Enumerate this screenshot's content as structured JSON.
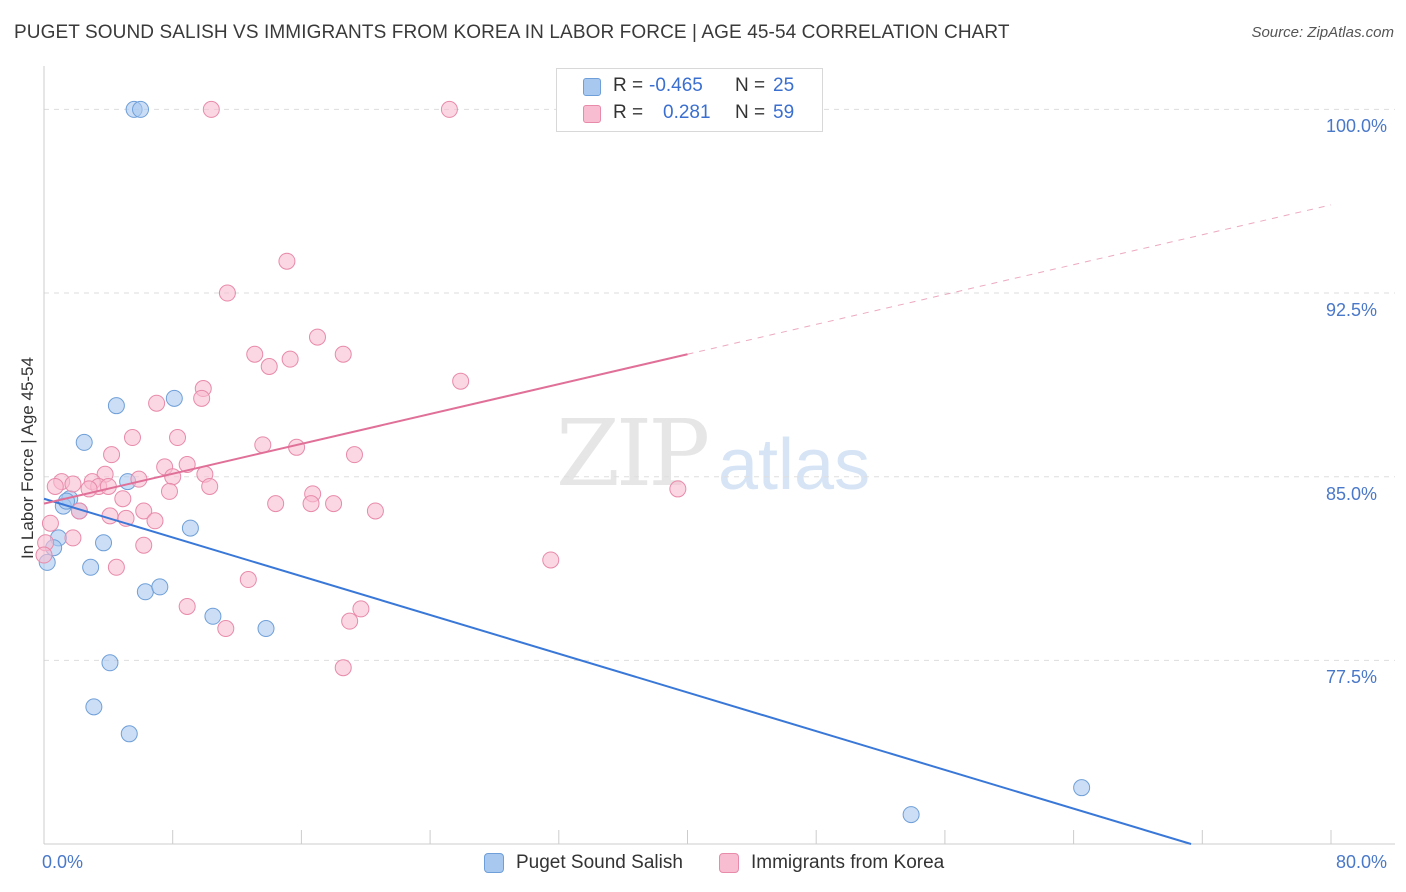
{
  "header": {
    "title": "PUGET SOUND SALISH VS IMMIGRANTS FROM KOREA IN LABOR FORCE | AGE 45-54 CORRELATION CHART",
    "source": "Source: ZipAtlas.com"
  },
  "watermark": {
    "zip": "ZIP",
    "atlas": "atlas"
  },
  "legend": {
    "rows": [
      {
        "r_label": "R =",
        "r_value": "-0.465",
        "n_label": "N =",
        "n_value": "25",
        "color": "#a8c8f0",
        "border": "#6f9fd8"
      },
      {
        "r_label": "R =",
        "r_value": "0.281",
        "n_label": "N =",
        "n_value": "59",
        "color": "#f8bdd0",
        "border": "#e88aaa"
      }
    ]
  },
  "bottom_legend": {
    "items": [
      {
        "label": "Puget Sound Salish",
        "color": "#a8c8f0",
        "border": "#6f9fd8"
      },
      {
        "label": "Immigrants from Korea",
        "color": "#f8bdd0",
        "border": "#e88aaa"
      }
    ]
  },
  "chart_data": {
    "type": "scatter",
    "title": "PUGET SOUND SALISH VS IMMIGRANTS FROM KOREA IN LABOR FORCE | AGE 45-54 CORRELATION CHART",
    "xlabel": "",
    "ylabel": "In Labor Force | Age 45-54",
    "xlim": [
      0,
      80
    ],
    "ylim": [
      70.0,
      101.2
    ],
    "x_tick_labels": [
      "0.0%",
      "80.0%"
    ],
    "y_ticks": [
      100.0,
      92.5,
      85.0,
      77.5
    ],
    "y_tick_labels": [
      "100.0%",
      "92.5%",
      "85.0%",
      "77.5%"
    ],
    "grid": true,
    "series": [
      {
        "name": "Puget Sound Salish",
        "color": "#a8c8f0",
        "stroke": "#6f9fd8",
        "line_color": "#3a78d8",
        "trend": {
          "x": [
            0,
            71.3
          ],
          "y": [
            84.1,
            70.0
          ]
        },
        "points": [
          [
            5.6,
            100.0
          ],
          [
            6.0,
            100.0
          ],
          [
            2.5,
            86.4
          ],
          [
            4.5,
            87.9
          ],
          [
            8.1,
            88.2
          ],
          [
            5.2,
            84.8
          ],
          [
            1.6,
            84.1
          ],
          [
            1.2,
            83.8
          ],
          [
            2.2,
            83.6
          ],
          [
            0.9,
            82.5
          ],
          [
            3.7,
            82.3
          ],
          [
            0.6,
            82.1
          ],
          [
            9.1,
            82.9
          ],
          [
            0.2,
            81.5
          ],
          [
            2.9,
            81.3
          ],
          [
            6.3,
            80.3
          ],
          [
            7.2,
            80.5
          ],
          [
            10.5,
            79.3
          ],
          [
            13.8,
            78.8
          ],
          [
            4.1,
            77.4
          ],
          [
            3.1,
            75.6
          ],
          [
            5.3,
            74.5
          ],
          [
            53.9,
            71.2
          ],
          [
            64.5,
            72.3
          ],
          [
            1.4,
            84.0
          ]
        ]
      },
      {
        "name": "Immigrants from Korea",
        "color": "#f8bdd0",
        "stroke": "#e88aaa",
        "line_color": "#e07098",
        "trend": {
          "x": [
            0,
            40.0
          ],
          "y": [
            83.9,
            90.0
          ]
        },
        "trend_extension": {
          "x": [
            40.0,
            80.0
          ],
          "y": [
            90.0,
            96.1
          ]
        },
        "points": [
          [
            10.4,
            100.0
          ],
          [
            25.2,
            100.0
          ],
          [
            15.1,
            93.8
          ],
          [
            11.4,
            92.5
          ],
          [
            17.0,
            90.7
          ],
          [
            13.1,
            90.0
          ],
          [
            15.3,
            89.8
          ],
          [
            18.6,
            90.0
          ],
          [
            14.0,
            89.5
          ],
          [
            25.9,
            88.9
          ],
          [
            9.9,
            88.6
          ],
          [
            9.8,
            88.2
          ],
          [
            7.0,
            88.0
          ],
          [
            5.5,
            86.6
          ],
          [
            8.3,
            86.6
          ],
          [
            13.6,
            86.3
          ],
          [
            15.7,
            86.2
          ],
          [
            4.2,
            85.9
          ],
          [
            19.3,
            85.9
          ],
          [
            7.5,
            85.4
          ],
          [
            8.9,
            85.5
          ],
          [
            3.8,
            85.1
          ],
          [
            10.0,
            85.1
          ],
          [
            8.0,
            85.0
          ],
          [
            5.9,
            84.9
          ],
          [
            3.0,
            84.8
          ],
          [
            1.1,
            84.8
          ],
          [
            0.7,
            84.6
          ],
          [
            3.4,
            84.6
          ],
          [
            4.0,
            84.6
          ],
          [
            2.8,
            84.5
          ],
          [
            1.8,
            84.7
          ],
          [
            10.3,
            84.6
          ],
          [
            7.8,
            84.4
          ],
          [
            16.7,
            84.3
          ],
          [
            4.9,
            84.1
          ],
          [
            14.4,
            83.9
          ],
          [
            16.6,
            83.9
          ],
          [
            18.0,
            83.9
          ],
          [
            2.2,
            83.6
          ],
          [
            6.2,
            83.6
          ],
          [
            20.6,
            83.6
          ],
          [
            4.1,
            83.4
          ],
          [
            5.1,
            83.3
          ],
          [
            6.9,
            83.2
          ],
          [
            0.4,
            83.1
          ],
          [
            1.8,
            82.5
          ],
          [
            0.1,
            82.3
          ],
          [
            6.2,
            82.2
          ],
          [
            31.5,
            81.6
          ],
          [
            0.0,
            81.8
          ],
          [
            4.5,
            81.3
          ],
          [
            12.7,
            80.8
          ],
          [
            8.9,
            79.7
          ],
          [
            19.7,
            79.6
          ],
          [
            19.0,
            79.1
          ],
          [
            11.3,
            78.8
          ],
          [
            18.6,
            77.2
          ],
          [
            39.4,
            84.5
          ]
        ]
      }
    ]
  }
}
